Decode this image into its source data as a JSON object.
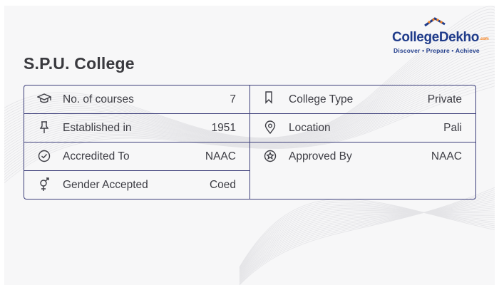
{
  "title": "S.P.U. College",
  "logo": {
    "name_part1": "College",
    "name_part2": "Dekho",
    "name_suffix": ".com",
    "tagline": "Discover • Prepare • Achieve"
  },
  "left_rows": [
    {
      "icon": "graduation-cap-icon",
      "label": "No. of courses",
      "value": "7"
    },
    {
      "icon": "pin-icon",
      "label": "Established in",
      "value": "1951"
    },
    {
      "icon": "check-circle-icon",
      "label": "Accredited To",
      "value": "NAAC"
    },
    {
      "icon": "gender-icon",
      "label": "Gender Accepted",
      "value": "Coed"
    }
  ],
  "right_rows": [
    {
      "icon": "bookmark-icon",
      "label": "College Type",
      "value": "Private"
    },
    {
      "icon": "location-icon",
      "label": "Location",
      "value": "Pali"
    },
    {
      "icon": "badge-star-icon",
      "label": "Approved By",
      "value": "NAAC"
    }
  ],
  "colors": {
    "border": "#3c3e7a",
    "text": "#3d3d44",
    "brand_blue": "#1f3b8a",
    "brand_orange": "#f58220",
    "background": "#f7f7f8"
  }
}
